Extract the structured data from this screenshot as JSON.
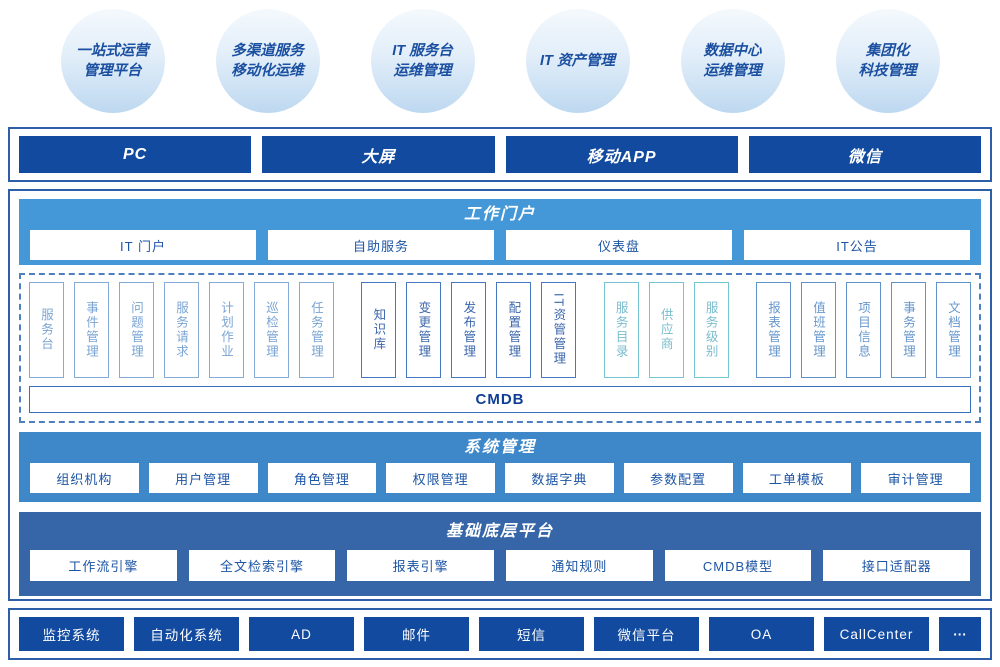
{
  "bubbles": [
    {
      "line1": "一站式运营",
      "line2": "管理平台"
    },
    {
      "line1": "多渠道服务",
      "line2": "移动化运维"
    },
    {
      "line1": "IT 服务台",
      "line2": "运维管理"
    },
    {
      "line1": "IT 资产管理",
      "line2": ""
    },
    {
      "line1": "数据中心",
      "line2": "运维管理"
    },
    {
      "line1": "集团化",
      "line2": "科技管理"
    }
  ],
  "channels": {
    "items": [
      "PC",
      "大屏",
      "移动APP",
      "微信"
    ]
  },
  "portal": {
    "title": "工作门户",
    "items": [
      "IT 门户",
      "自助服务",
      "仪表盘",
      "IT公告"
    ]
  },
  "modules": {
    "group1": [
      "服务台",
      "事件管理",
      "问题管理",
      "服务请求",
      "计划作业",
      "巡检管理",
      "任务管理"
    ],
    "group2": [
      "知识库",
      "变更管理",
      "发布管理",
      "配置管理",
      "IT资管管理"
    ],
    "group3": [
      "服务目录",
      "供应商",
      "服务级别"
    ],
    "group4": [
      "报表管理",
      "值班管理",
      "项目信息",
      "事务管理",
      "文档管理"
    ],
    "cmdb": "CMDB"
  },
  "system": {
    "title": "系统管理",
    "items": [
      "组织机构",
      "用户管理",
      "角色管理",
      "权限管理",
      "数据字典",
      "参数配置",
      "工单模板",
      "审计管理"
    ]
  },
  "platform": {
    "title": "基础底层平台",
    "items": [
      "工作流引擎",
      "全文检索引擎",
      "报表引擎",
      "通知规则",
      "CMDB模型",
      "接口适配器"
    ]
  },
  "integrations": {
    "items": [
      "监控系统",
      "自动化系统",
      "AD",
      "邮件",
      "短信",
      "微信平台",
      "OA",
      "CallCenter",
      "···"
    ]
  },
  "colors": {
    "dark_bar": "#114a9e",
    "portal_bg": "#4498d7",
    "system_bg": "#3e88ca",
    "platform_bg": "#3666a8",
    "accent_border": "#2f5ea9",
    "bubble_text": "#1b4fa0",
    "teal_accent": "#76c5d2"
  }
}
